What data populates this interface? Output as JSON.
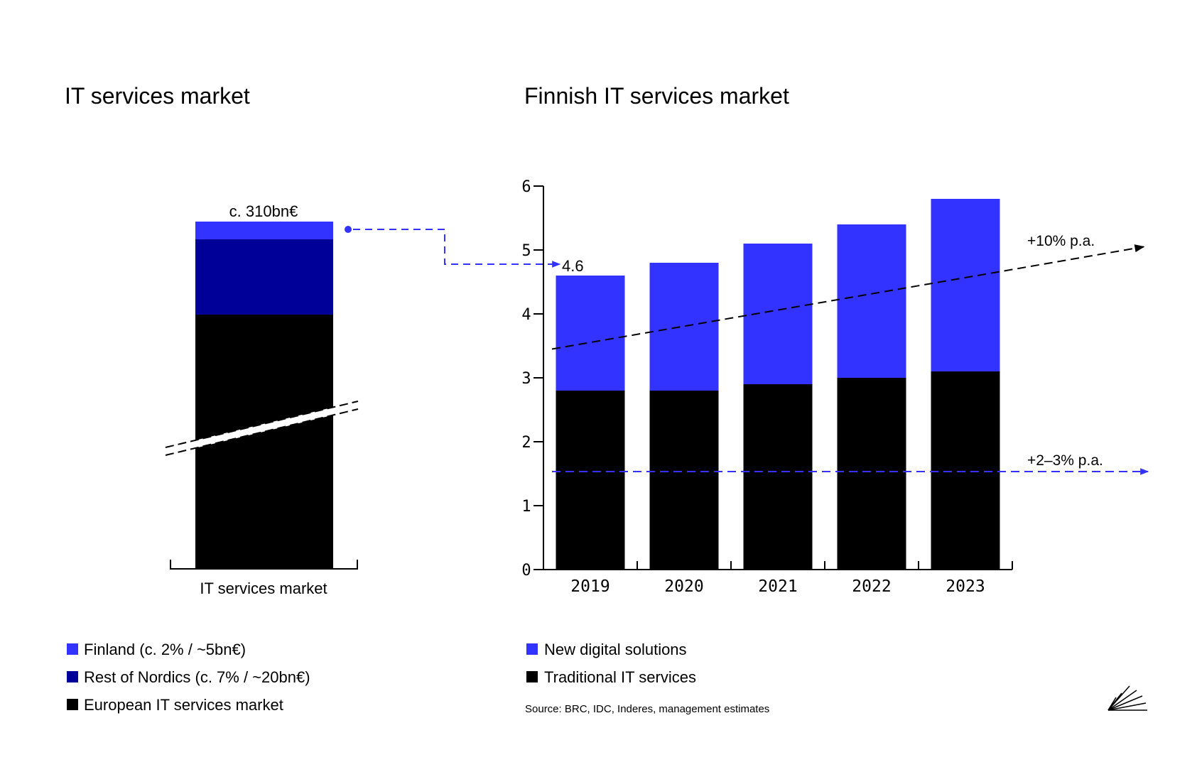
{
  "colors": {
    "finland": "#3333ff",
    "nordics": "#000099",
    "european": "#000000",
    "new_digital": "#3333ff",
    "traditional": "#000000",
    "trend_black": "#000000",
    "trend_blue": "#3333ff"
  },
  "left_panel": {
    "title": "IT services market",
    "total_label": "c. 310bn€",
    "x_label": "IT services market",
    "legend": [
      {
        "label": "Finland (c. 2% / ~5bn€)",
        "color": "#3333ff"
      },
      {
        "label": "Rest of Nordics (c. 7% / ~20bn€)",
        "color": "#000099"
      },
      {
        "label": "European IT services market",
        "color": "#000000"
      }
    ]
  },
  "chart_data": [
    {
      "type": "bar",
      "title": "IT services market",
      "categories": [
        "IT services market"
      ],
      "stacked": true,
      "axis_break": true,
      "total_label": "c. 310bn€",
      "series": [
        {
          "name": "European IT services market",
          "values": [
            285
          ]
        },
        {
          "name": "Rest of Nordics (c. 7% / ~20bn€)",
          "values": [
            20
          ]
        },
        {
          "name": "Finland (c. 2% / ~5bn€)",
          "values": [
            5
          ]
        }
      ]
    },
    {
      "type": "bar",
      "title": "Finnish IT services market",
      "stacked": true,
      "categories": [
        "2019",
        "2020",
        "2021",
        "2022",
        "2023"
      ],
      "series": [
        {
          "name": "Traditional IT services",
          "values": [
            2.8,
            2.8,
            2.9,
            3.0,
            3.1
          ]
        },
        {
          "name": "New digital solutions",
          "values": [
            1.8,
            2.0,
            2.2,
            2.4,
            2.7
          ]
        }
      ],
      "yticks": [
        "0",
        "1",
        "2",
        "3",
        "4",
        "5",
        "6"
      ],
      "ylim": [
        0,
        6
      ],
      "totals": [
        4.6,
        4.8,
        5.1,
        5.4,
        5.8
      ],
      "first_total_label": "4.6",
      "annotations": [
        {
          "text": "+10% p.a.",
          "series": "New digital solutions"
        },
        {
          "text": "+2–3% p.a.",
          "series": "Traditional IT services"
        }
      ],
      "legend": [
        {
          "label": "New digital solutions",
          "color": "#3333ff"
        },
        {
          "label": "Traditional IT services",
          "color": "#000000"
        }
      ],
      "source": "Source: BRC, IDC, Inderes, management estimates"
    }
  ]
}
